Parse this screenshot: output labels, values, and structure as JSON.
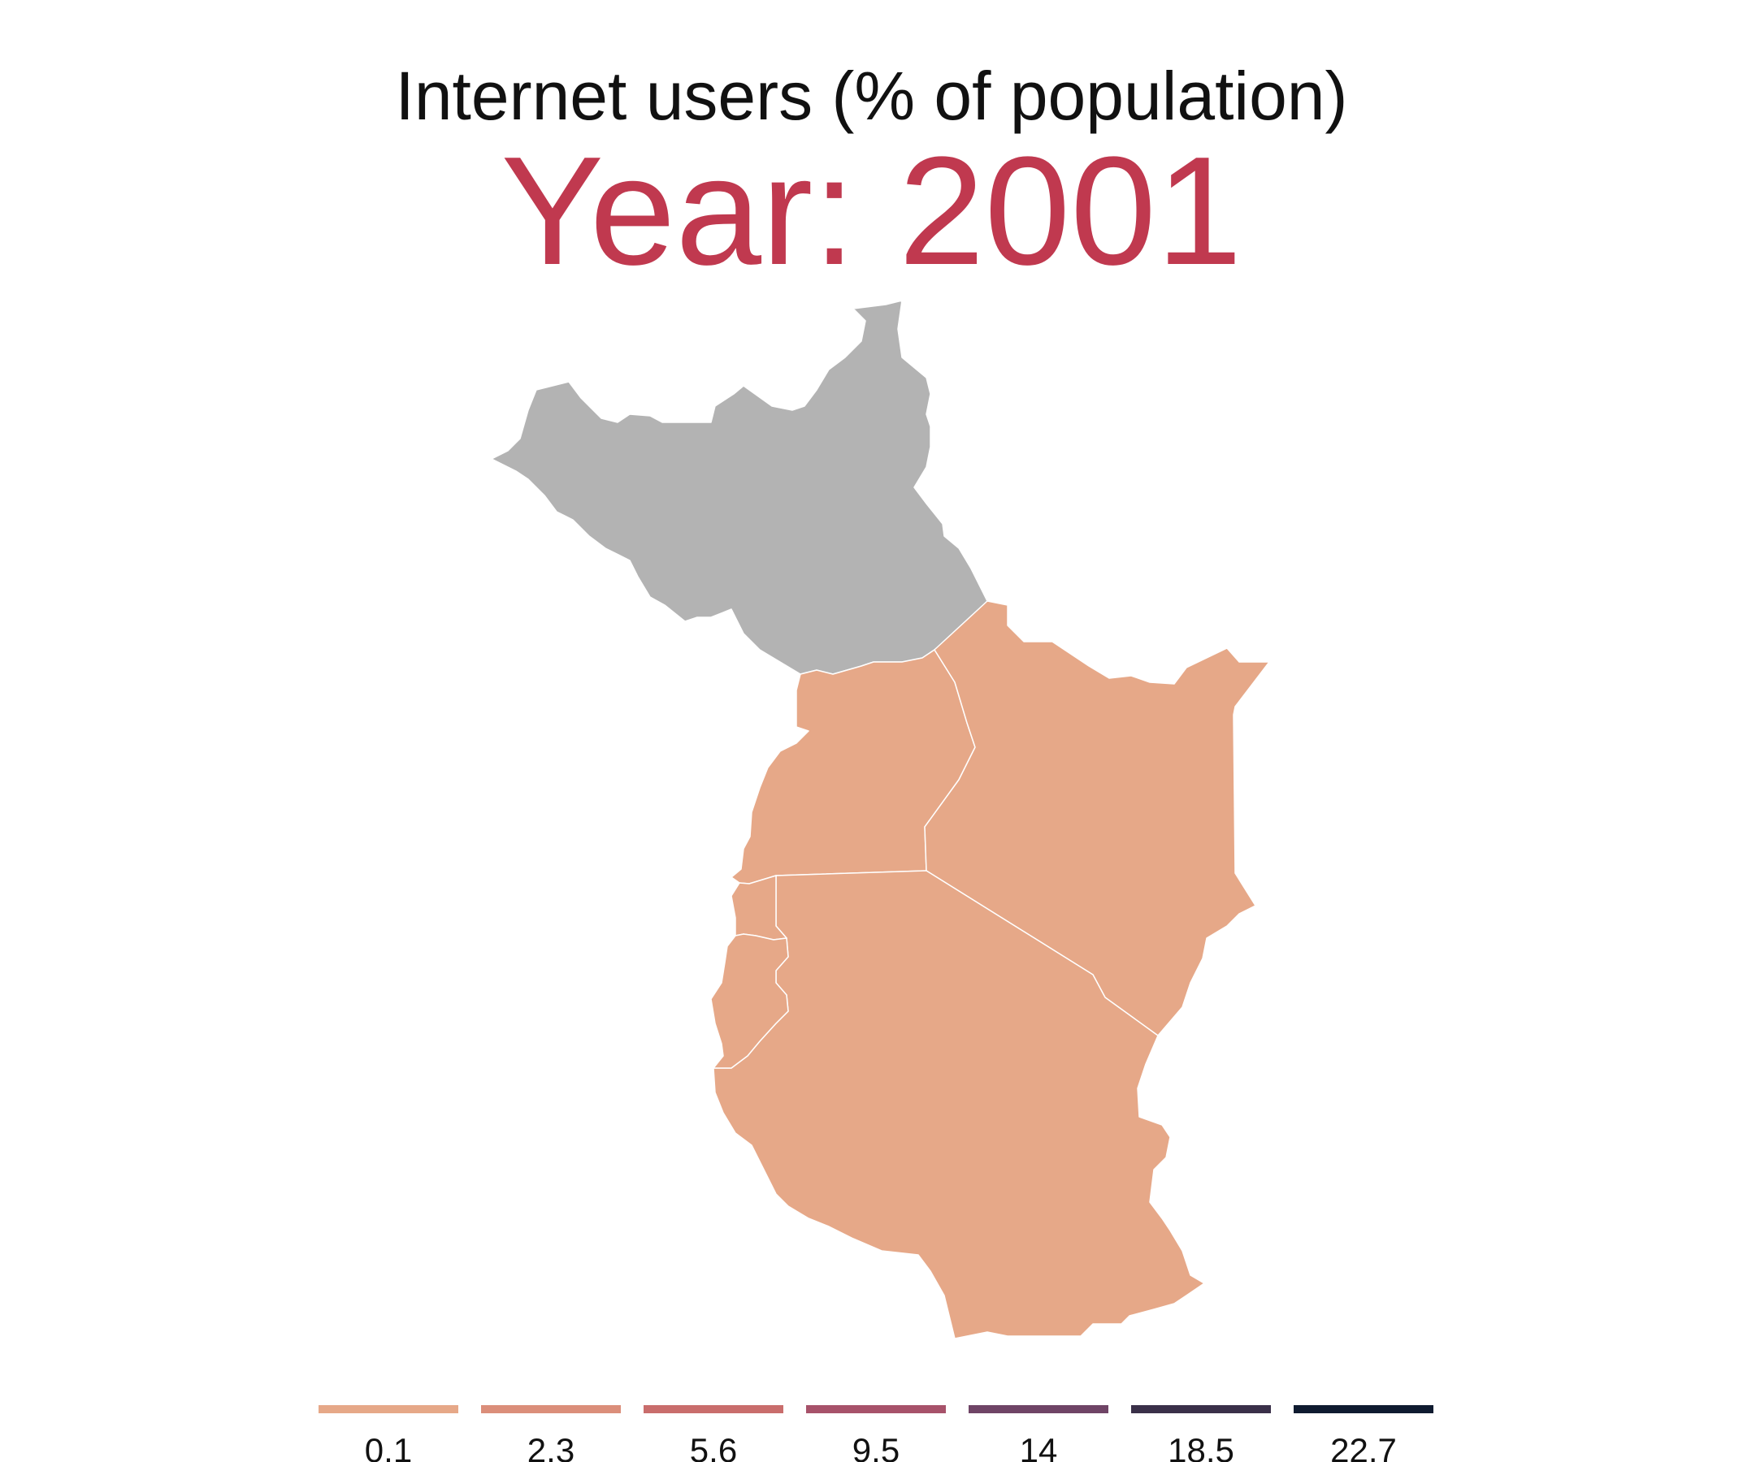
{
  "title": "Internet users (% of population)",
  "subtitle": "Year: 2001",
  "colors": {
    "no_data": "#b3b3b3",
    "fill_low": "#e6a888",
    "border": "#ffffff",
    "subtitle": "#c0394f"
  },
  "regions": [
    {
      "id": "south-sudan",
      "status": "no data"
    },
    {
      "id": "uganda",
      "bin": "0.1"
    },
    {
      "id": "kenya",
      "bin": "0.1"
    },
    {
      "id": "tanzania",
      "bin": "0.1"
    },
    {
      "id": "rwanda",
      "bin": "0.1"
    },
    {
      "id": "burundi",
      "bin": "0.1"
    }
  ],
  "legend": {
    "items": [
      {
        "label": "0.1",
        "color": "#e6a888"
      },
      {
        "label": "2.3",
        "color": "#db8e7a"
      },
      {
        "label": "5.6",
        "color": "#c96d6c"
      },
      {
        "label": "9.5",
        "color": "#a7526a"
      },
      {
        "label": "14",
        "color": "#6f4466"
      },
      {
        "label": "18.5",
        "color": "#3a3049"
      },
      {
        "label": "22.7",
        "color": "#0f1b30"
      }
    ]
  }
}
